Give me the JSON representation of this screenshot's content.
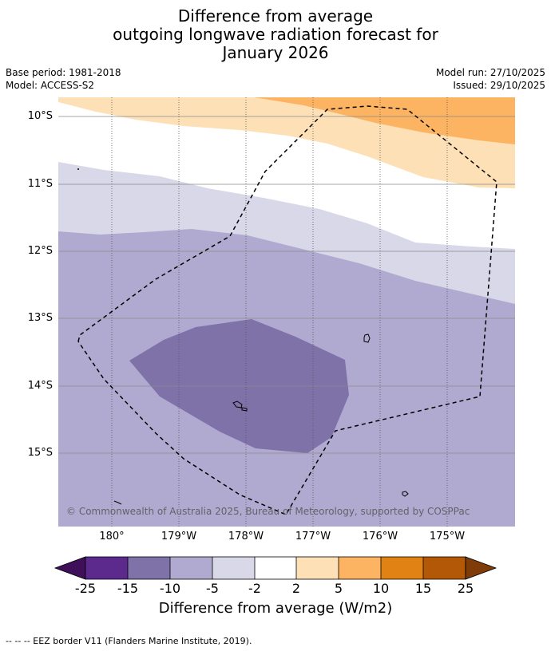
{
  "title": {
    "line1": "Difference from average",
    "line2": "outgoing longwave radiation forecast for",
    "line3": "January 2026"
  },
  "meta": {
    "base_period": "Base period: 1981-2018",
    "model": "Model: ACCESS-S2",
    "model_run": "Model run: 27/10/2025",
    "issued": "Issued: 29/10/2025"
  },
  "map": {
    "latitude_labels": [
      "10°S",
      "11°S",
      "12°S",
      "13°S",
      "14°S",
      "15°S"
    ],
    "longitude_labels": [
      "180°",
      "179°W",
      "178°W",
      "177°W",
      "176°W",
      "175°W"
    ],
    "copyright": "© Commonwealth of Australia 2025, Bureau of Meteorology, supported by COSPPac",
    "colors": {
      "c_neg15_neg10": "#7f72a9",
      "c_neg10_neg5": "#b0aad1",
      "c_neg5_neg2": "#d8d8e9",
      "c_neg2_2": "#ffffff",
      "c_2_5": "#fde0b6",
      "c_5_10": "#fdb462"
    }
  },
  "colorbar": {
    "ticks": [
      "-25",
      "-15",
      "-10",
      "-5",
      "-2",
      "2",
      "5",
      "10",
      "15",
      "25"
    ],
    "colors": [
      "#3f0f59",
      "#5b2a8c",
      "#7f72a9",
      "#b0aad1",
      "#d8d8e9",
      "#ffffff",
      "#fde0b6",
      "#fdb462",
      "#e08214",
      "#b35806",
      "#7f3b08"
    ],
    "label": "Difference from average (W/m2)"
  },
  "footnote": "--  --  -- EEZ border V11 (Flanders Marine Institute, 2019)."
}
